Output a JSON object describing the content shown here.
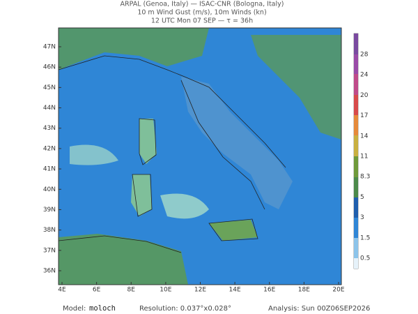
{
  "header": {
    "line1": "ARPAL (Genoa, Italy)  —  ISAC-CNR (Bologna, Italy)",
    "line2": "10 m Wind Gust (m/s), 10m Winds (kn)",
    "line3": "12 UTC Mon 07 SEP  —  τ = 36h"
  },
  "map": {
    "lat_labels": [
      "47N",
      "46N",
      "45N",
      "44N",
      "43N",
      "42N",
      "41N",
      "40N",
      "39N",
      "38N",
      "37N",
      "36N"
    ],
    "lon_labels": [
      "4E",
      "6E",
      "8E",
      "10E",
      "12E",
      "14E",
      "16E",
      "18E",
      "20E"
    ]
  },
  "colorbar": {
    "labels": [
      "28",
      "24",
      "20",
      "17",
      "14",
      "11",
      "8.3",
      "5",
      "3",
      "1.5",
      "0.5"
    ]
  },
  "footer": {
    "model_label": "Model:",
    "model": "moloch",
    "resolution": "Resolution: 0.037°x0.028°",
    "analysis": "Analysis: Sun 00Z06SEP2026"
  }
}
